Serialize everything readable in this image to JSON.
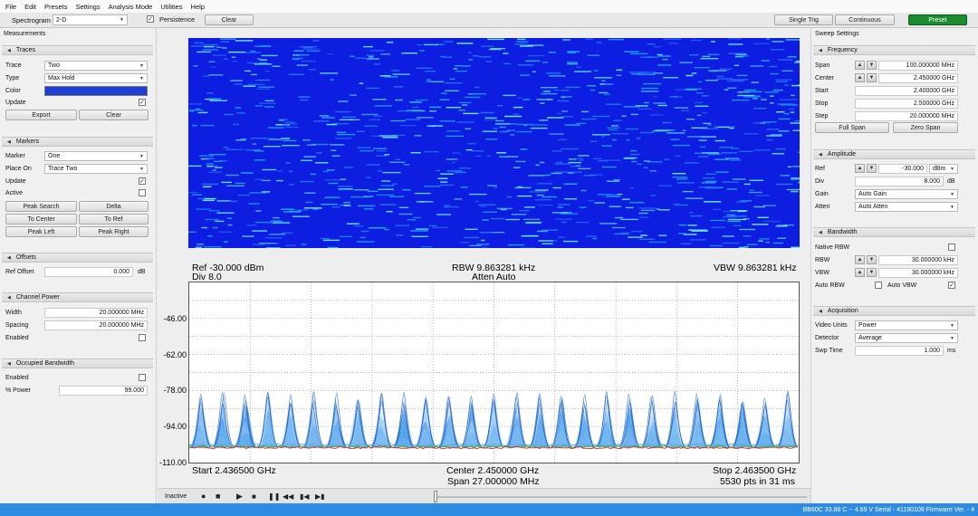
{
  "menu": [
    "File",
    "Edit",
    "Presets",
    "Settings",
    "Analysis Mode",
    "Utilities",
    "Help"
  ],
  "toolbar": {
    "mode_label": "Spectrogram",
    "mode_value": "2-D",
    "persistence_label": "Persistence",
    "clear_label": "Clear",
    "single_trig_label": "Single Trig",
    "continuous_label": "Continuous",
    "preset_label": "Preset"
  },
  "colors": {
    "preset": "#1c8a2e",
    "trace_color": "#1e3fd0",
    "spectrogram_bg": "#0d1ee0",
    "status_bar": "#2f8be0"
  },
  "left": {
    "title": "Measurements",
    "traces": {
      "header": "Traces",
      "trace_label": "Trace",
      "trace_value": "Two",
      "type_label": "Type",
      "type_value": "Max Hold",
      "color_label": "Color",
      "update_label": "Update",
      "export_label": "Export",
      "clear_label": "Clear"
    },
    "markers": {
      "header": "Markers",
      "marker_label": "Marker",
      "marker_value": "One",
      "placeon_label": "Place On",
      "placeon_value": "Trace Two",
      "update_label": "Update",
      "active_label": "Active",
      "buttons": [
        "Peak Search",
        "Delta",
        "To Center",
        "To Ref",
        "Peak Left",
        "Peak Right"
      ]
    },
    "offsets": {
      "header": "Offsets",
      "ref_label": "Ref Offset",
      "ref_value": "0.000",
      "ref_unit": "dB"
    },
    "channel_power": {
      "header": "Channel Power",
      "width_label": "Width",
      "width_value": "20.000000 MHz",
      "spacing_label": "Spacing",
      "spacing_value": "20.000000 MHz",
      "enabled_label": "Enabled"
    },
    "occupied_bw": {
      "header": "Occupied Bandwidth",
      "enabled_label": "Enabled",
      "power_label": "% Power",
      "power_value": "99.000"
    }
  },
  "right": {
    "title": "Sweep Settings",
    "frequency": {
      "header": "Frequency",
      "span_label": "Span",
      "span_value": "100.000000 MHz",
      "center_label": "Center",
      "center_value": "2.450000 GHz",
      "start_label": "Start",
      "start_value": "2.400000 GHz",
      "stop_label": "Stop",
      "stop_value": "2.500000 GHz",
      "step_label": "Step",
      "step_value": "20.000000 MHz",
      "full_span_label": "Full Span",
      "zero_span_label": "Zero Span"
    },
    "amplitude": {
      "header": "Amplitude",
      "ref_label": "Ref",
      "ref_value": "-30.000",
      "ref_unit": "dBm",
      "div_label": "Div",
      "div_value": "8.000",
      "div_unit": "dB",
      "gain_label": "Gain",
      "gain_value": "Auto Gain",
      "atten_label": "Atten",
      "atten_value": "Auto Atten"
    },
    "bandwidth": {
      "header": "Bandwidth",
      "native_label": "Native RBW",
      "rbw_label": "RBW",
      "rbw_value": "30.000000 kHz",
      "vbw_label": "VBW",
      "vbw_value": "30.000000 kHz",
      "auto_rbw_label": "Auto RBW",
      "auto_vbw_label": "Auto VBW"
    },
    "acquisition": {
      "header": "Acquisition",
      "video_label": "Video Units",
      "video_value": "Power",
      "detector_label": "Detector",
      "detector_value": "Average",
      "swp_label": "Swp Time",
      "swp_value": "1.000",
      "swp_unit": "ms"
    }
  },
  "plot": {
    "ref": "Ref -30.000 dBm",
    "div": "Div 8.0",
    "rbw": "RBW 9.863281 kHz",
    "atten": "Atten Auto",
    "vbw": "VBW 9.863281 kHz",
    "start": "Start 2.436500 GHz",
    "center": "Center 2.450000 GHz",
    "span": "Span 27.000000 MHz",
    "stop": "Stop 2.463500 GHz",
    "pts": "5530 pts in 31 ms"
  },
  "chart_data": {
    "type": "line",
    "ylim": [
      -110,
      -30
    ],
    "y_ticks": [
      "-46.00",
      "-62.00",
      "-78.00",
      "-94.00",
      "-110.00"
    ],
    "y_tick_values": [
      -46,
      -62,
      -78,
      -94,
      -110
    ],
    "x_start_ghz": 2.4365,
    "x_stop_ghz": 2.4635,
    "grid": true,
    "grid_divisions_x": 10,
    "grid_divisions_y": 10,
    "noise_floor_dbm": -103,
    "peak_count": 27,
    "peak_level_dbm": -78
  },
  "bottom": {
    "status": "Inactive"
  },
  "statusbar": {
    "text": "BB60C  33.88 C  --  4.69 V  Serial - 41190109    Firmware Ver. - 4"
  }
}
